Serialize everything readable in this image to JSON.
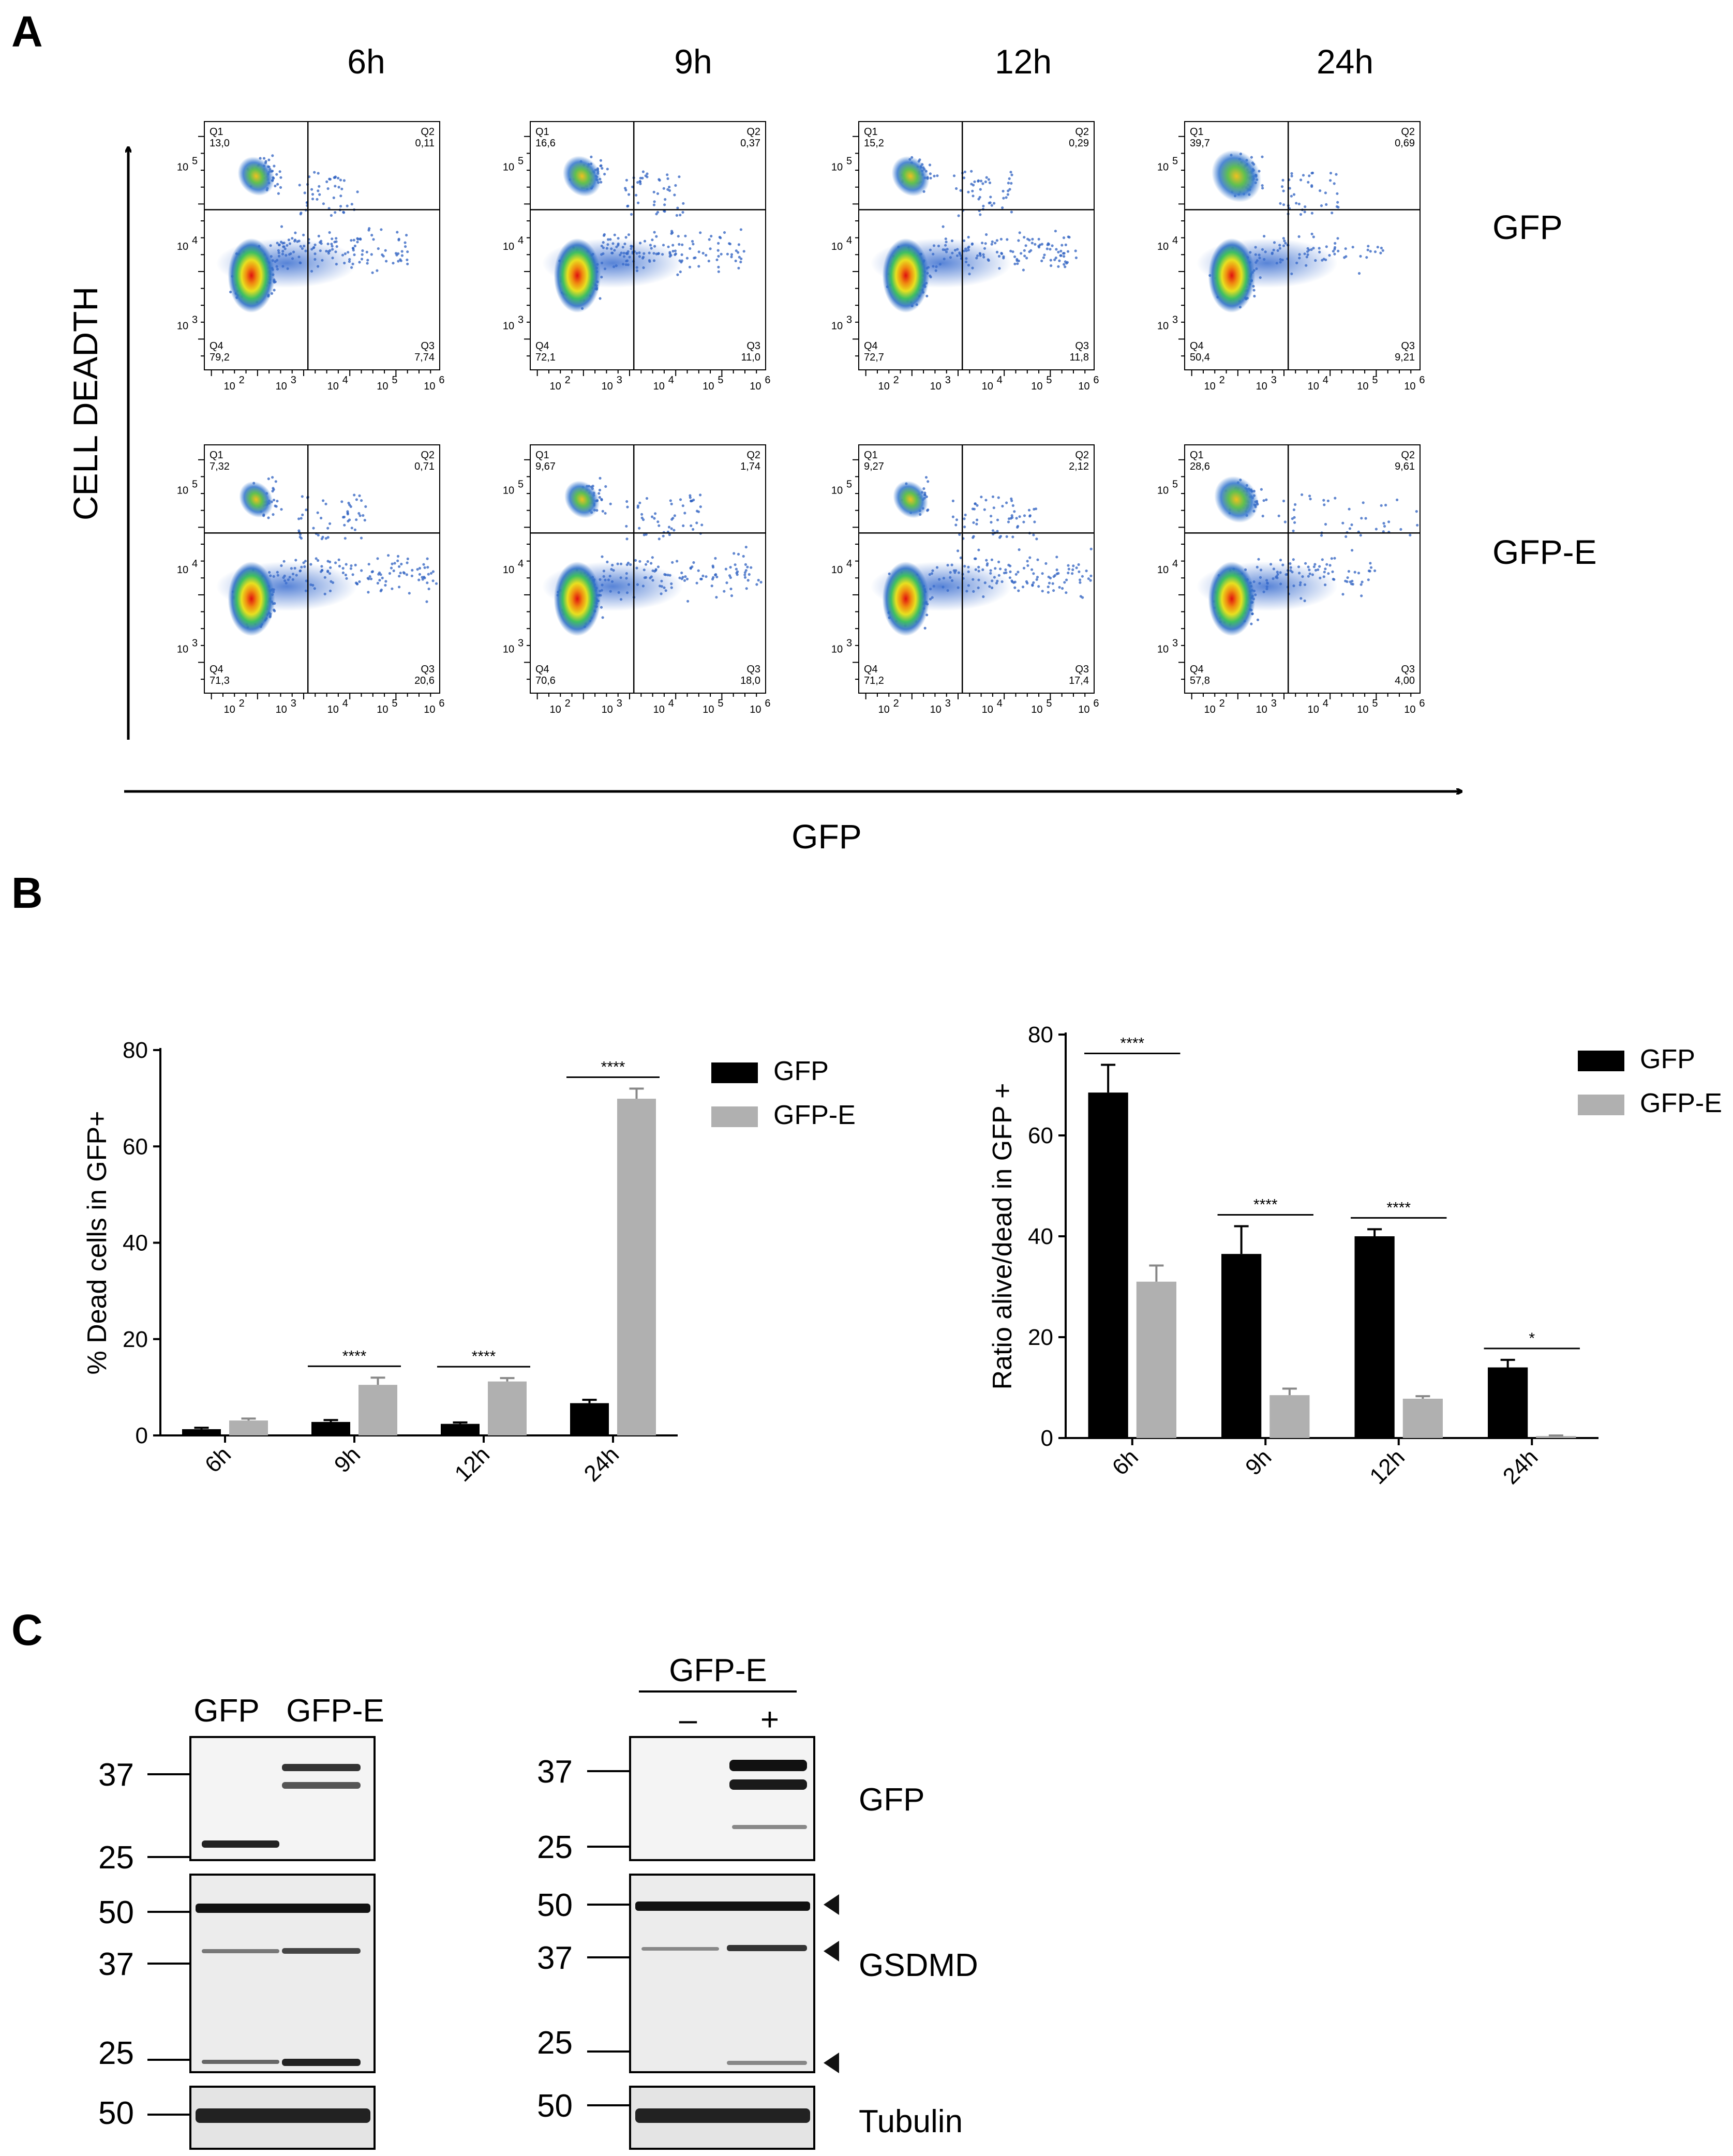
{
  "panel_a": {
    "letter": "A",
    "timepoints": [
      "6h",
      "9h",
      "12h",
      "24h"
    ],
    "row_labels": [
      "GFP",
      "GFP-E"
    ],
    "y_axis_label": "CELL DEADTH",
    "x_axis_label": "GFP",
    "decade_labels": [
      "2",
      "3",
      "4",
      "5",
      "6"
    ],
    "plots": [
      [
        {
          "q1_label": "Q1",
          "q1": "13,0",
          "q2_label": "Q2",
          "q2": "0,11",
          "q3_label": "Q3",
          "q3": "7,74",
          "q4_label": "Q4",
          "q4": "79,2"
        },
        {
          "q1_label": "Q1",
          "q1": "16,6",
          "q2_label": "Q2",
          "q2": "0,37",
          "q3_label": "Q3",
          "q3": "11,0",
          "q4_label": "Q4",
          "q4": "72,1"
        },
        {
          "q1_label": "Q1",
          "q1": "15,2",
          "q2_label": "Q2",
          "q2": "0,29",
          "q3_label": "Q3",
          "q3": "11,8",
          "q4_label": "Q4",
          "q4": "72,7"
        },
        {
          "q1_label": "Q1",
          "q1": "39,7",
          "q2_label": "Q2",
          "q2": "0,69",
          "q3_label": "Q3",
          "q3": "9,21",
          "q4_label": "Q4",
          "q4": "50,4"
        }
      ],
      [
        {
          "q1_label": "Q1",
          "q1": "7,32",
          "q2_label": "Q2",
          "q2": "0,71",
          "q3_label": "Q3",
          "q3": "20,6",
          "q4_label": "Q4",
          "q4": "71,3"
        },
        {
          "q1_label": "Q1",
          "q1": "9,67",
          "q2_label": "Q2",
          "q2": "1,74",
          "q3_label": "Q3",
          "q3": "18,0",
          "q4_label": "Q4",
          "q4": "70,6"
        },
        {
          "q1_label": "Q1",
          "q1": "9,27",
          "q2_label": "Q2",
          "q2": "2,12",
          "q3_label": "Q3",
          "q3": "17,4",
          "q4_label": "Q4",
          "q4": "71,2"
        },
        {
          "q1_label": "Q1",
          "q1": "28,6",
          "q2_label": "Q2",
          "q2": "9,61",
          "q3_label": "Q3",
          "q3": "4,00",
          "q4_label": "Q4",
          "q4": "57,8"
        }
      ]
    ]
  },
  "panel_b": {
    "letter": "B"
  },
  "chart_data": [
    {
      "type": "bar",
      "categories": [
        "6h",
        "9h",
        "12h",
        "24h"
      ],
      "series": [
        {
          "name": "GFP",
          "values": [
            1.3,
            2.8,
            2.4,
            6.7
          ],
          "errors": [
            0.3,
            0.4,
            0.3,
            0.7
          ],
          "color": "#000000"
        },
        {
          "name": "GFP-E",
          "values": [
            3.1,
            10.5,
            11.2,
            69.9
          ],
          "errors": [
            0.4,
            1.5,
            0.7,
            2.1
          ],
          "color": "#b0b0b0"
        }
      ],
      "significance": [
        "",
        "****",
        "****",
        "****"
      ],
      "ylabel": "% Dead cells in GFP+",
      "yticks": [
        "0",
        "20",
        "40",
        "60",
        "80"
      ],
      "ylim": [
        0,
        80
      ],
      "legend": "top-right"
    },
    {
      "type": "bar",
      "categories": [
        "6h",
        "9h",
        "12h",
        "24h"
      ],
      "series": [
        {
          "name": "GFP",
          "values": [
            68.5,
            36.5,
            40.0,
            14.0
          ],
          "errors": [
            5.5,
            5.5,
            1.4,
            1.5
          ],
          "color": "#000000"
        },
        {
          "name": "GFP-E",
          "values": [
            31.0,
            8.5,
            7.8,
            0.4
          ],
          "errors": [
            3.2,
            1.3,
            0.5,
            0.1
          ],
          "color": "#b0b0b0"
        }
      ],
      "significance": [
        "****",
        "****",
        "****",
        "*"
      ],
      "ylabel": "Ratio alive/dead in GFP +",
      "yticks": [
        "0",
        "20",
        "40",
        "60",
        "80"
      ],
      "ylim": [
        0,
        80
      ],
      "legend": "top-right"
    }
  ],
  "panel_c": {
    "letter": "C",
    "left": {
      "lane_labels": [
        "GFP",
        "GFP-E"
      ],
      "top_markers": [
        "37",
        "25"
      ],
      "mid_markers": [
        "50",
        "37",
        "25"
      ],
      "bottom_markers": [
        "50"
      ]
    },
    "right": {
      "group_label": "GFP-E",
      "lane_labels": [
        "–",
        "+"
      ],
      "top_markers": [
        "37",
        "25"
      ],
      "mid_markers": [
        "50",
        "37",
        "25"
      ],
      "bottom_markers": [
        "50"
      ]
    },
    "blot_labels": [
      "GFP",
      "GSDMD",
      "Tubulin"
    ]
  }
}
